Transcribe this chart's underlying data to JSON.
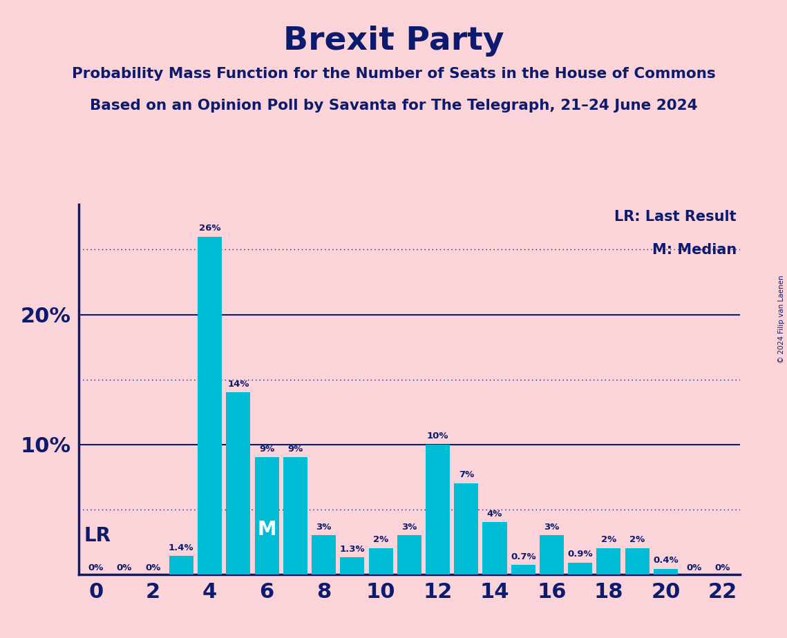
{
  "title": "Brexit Party",
  "subtitle1": "Probability Mass Function for the Number of Seats in the House of Commons",
  "subtitle2": "Based on an Opinion Poll by Savanta for The Telegraph, 21–24 June 2024",
  "copyright": "© 2024 Filip van Laenen",
  "seats": [
    0,
    1,
    2,
    3,
    4,
    5,
    6,
    7,
    8,
    9,
    10,
    11,
    12,
    13,
    14,
    15,
    16,
    17,
    18,
    19,
    20,
    21,
    22
  ],
  "values": [
    0.0,
    0.0,
    0.0,
    1.4,
    26.0,
    14.0,
    9.0,
    9.0,
    3.0,
    1.3,
    2.0,
    3.0,
    10.0,
    7.0,
    4.0,
    0.7,
    3.0,
    0.9,
    2.0,
    2.0,
    0.4,
    0.0,
    0.0
  ],
  "labels": [
    "0%",
    "0%",
    "0%",
    "1.4%",
    "26%",
    "14%",
    "9%",
    "9%",
    "3%",
    "1.3%",
    "2%",
    "3%",
    "10%",
    "7%",
    "4%",
    "0.7%",
    "3%",
    "0.9%",
    "2%",
    "2%",
    "0.4%",
    "0%",
    "0%"
  ],
  "bar_color": "#00BCD4",
  "background_color": "#FAD4D8",
  "title_color": "#0D1B6E",
  "axis_color": "#0D1B6E",
  "text_color": "#0D1B6E",
  "lr_seat": 0,
  "median_seat": 6,
  "solid_hlines": [
    10.0,
    20.0
  ],
  "dotted_hlines": [
    5.0,
    15.0,
    25.0
  ],
  "yticks": [
    10.0,
    20.0
  ],
  "xlim": [
    -0.6,
    22.6
  ],
  "ylim": [
    0,
    28.5
  ],
  "xtick_positions": [
    0,
    2,
    4,
    6,
    8,
    10,
    12,
    14,
    16,
    18,
    20,
    22
  ],
  "legend_lr": "LR: Last Result",
  "legend_m": "M: Median",
  "bar_width": 0.85
}
